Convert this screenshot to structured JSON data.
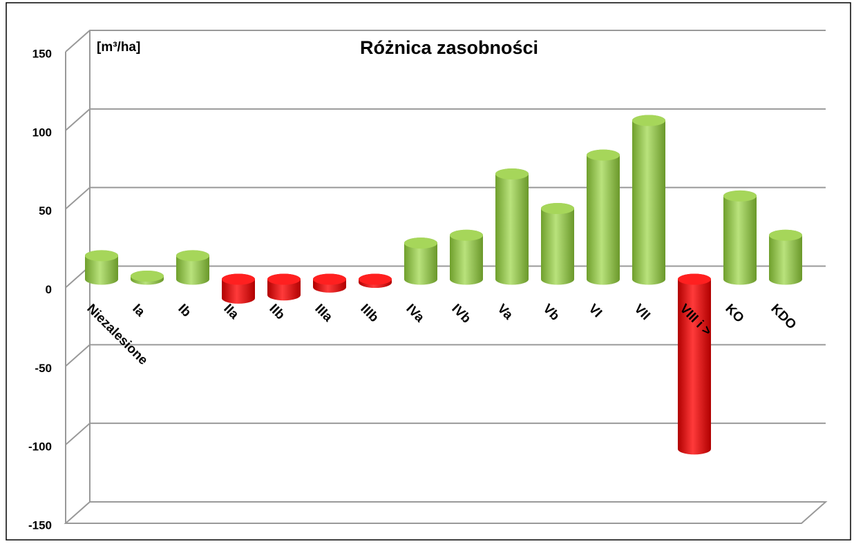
{
  "chart_data": {
    "type": "bar3d",
    "title": "Różnica zasobności",
    "unit_label": "[m³/ha]",
    "categories": [
      "Niezalesione",
      "Ia",
      "Ib",
      "IIa",
      "IIb",
      "IIIa",
      "IIIb",
      "IVa",
      "IVb",
      "Va",
      "Vb",
      "VI",
      "VII",
      "VIII i >",
      "KO",
      "KDO"
    ],
    "values": [
      15,
      2,
      15,
      -12,
      -10,
      -5,
      -2,
      23,
      28,
      67,
      45,
      79,
      101,
      -108,
      53,
      28
    ],
    "color_positive": "#92d050",
    "color_negative": "#ff0000",
    "ylim": [
      -150,
      150
    ],
    "yticks": [
      150,
      100,
      50,
      0,
      -50,
      -100,
      -150
    ],
    "grid": true
  }
}
